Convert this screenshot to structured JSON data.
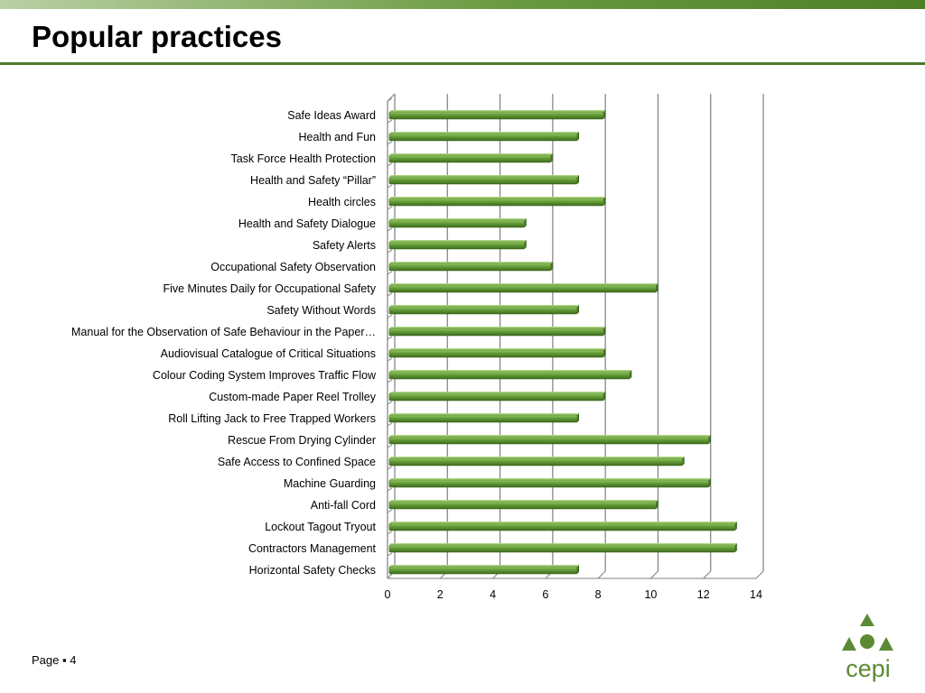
{
  "slide": {
    "title": "Popular practices",
    "page_label": "Page",
    "page_sep": "▪",
    "page_number": "4",
    "logo_text": "cepi"
  },
  "colors": {
    "bar": "#5e9634",
    "bar_dark": "#3f6d1f",
    "bar_light": "#8fc062",
    "grid": "#7f7f7f",
    "title_rule": "#4c7a2a",
    "logo": "#5a8a35"
  },
  "chart_data": {
    "type": "bar",
    "orientation": "horizontal",
    "style": "3d-clustered",
    "categories": [
      "Safe Ideas Award",
      "Health and Fun",
      "Task Force Health Protection",
      "Health and Safety “Pillar”",
      "Health circles",
      "Health and Safety Dialogue",
      "Safety Alerts",
      "Occupational Safety Observation",
      "Five Minutes Daily for Occupational Safety",
      "Safety Without Words",
      "Manual for the Observation of Safe Behaviour in the Paper…",
      "Audiovisual Catalogue of Critical Situations",
      "Colour Coding System Improves Traffic Flow",
      "Custom-made Paper Reel Trolley",
      "Roll Lifting Jack to Free Trapped Workers",
      "Rescue From Drying Cylinder",
      "Safe Access to Confined Space",
      "Machine Guarding",
      "Anti-fall Cord",
      "Lockout Tagout Tryout",
      "Contractors Management",
      "Horizontal Safety Checks"
    ],
    "values": [
      8,
      7,
      6,
      7,
      8,
      5,
      5,
      6,
      10,
      7,
      8,
      8,
      9,
      8,
      7,
      12,
      11,
      12,
      10,
      13,
      13,
      7
    ],
    "xlim": [
      0,
      14
    ],
    "xticks": [
      "0",
      "2",
      "4",
      "6",
      "8",
      "10",
      "12",
      "14"
    ],
    "grid": "vertical major gridlines",
    "legend": "none"
  }
}
